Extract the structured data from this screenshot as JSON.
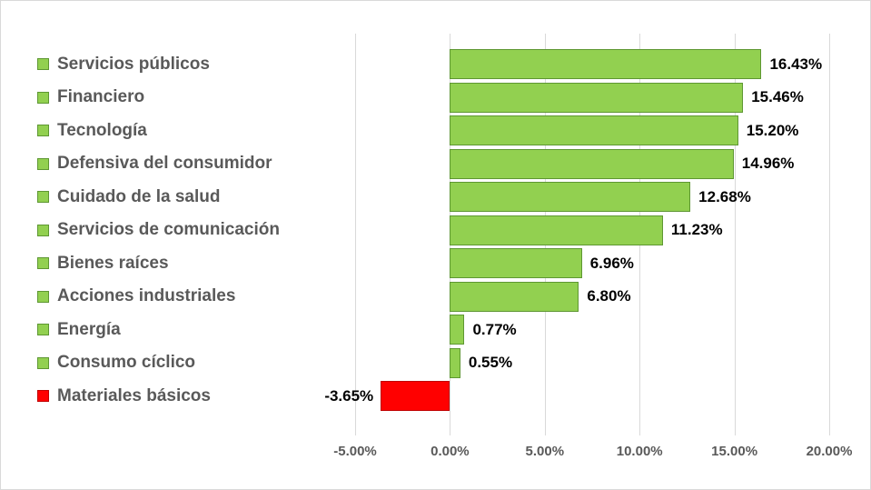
{
  "chart_data": {
    "type": "bar",
    "orientation": "horizontal",
    "title": "",
    "xlabel": "",
    "ylabel": "",
    "categories": [
      "Servicios públicos",
      "Financiero",
      "Tecnología",
      "Defensiva del consumidor",
      "Cuidado de la salud",
      "Servicios de comunicación",
      "Bienes raíces",
      "Acciones industriales",
      "Energía",
      "Consumo cíclico",
      "Materiales básicos"
    ],
    "values": [
      16.43,
      15.46,
      15.2,
      14.96,
      12.68,
      11.23,
      6.96,
      6.8,
      0.77,
      0.55,
      -3.65
    ],
    "value_labels": [
      "16.43%",
      "15.46%",
      "15.20%",
      "14.96%",
      "12.68%",
      "11.23%",
      "6.96%",
      "6.80%",
      "0.77%",
      "0.55%",
      "-3.65%"
    ],
    "x_ticks": [
      {
        "label": "-5.00%",
        "value": -5
      },
      {
        "label": "0.00%",
        "value": 0
      },
      {
        "label": "5.00%",
        "value": 5
      },
      {
        "label": "10.00%",
        "value": 10
      },
      {
        "label": "15.00%",
        "value": 15
      },
      {
        "label": "20.00%",
        "value": 20
      }
    ],
    "xlim": [
      -5,
      20
    ],
    "grid": true,
    "legend_position": "none",
    "colors": {
      "positive": "#92D050",
      "positive_border": "#5E9732",
      "negative": "#FF0000",
      "negative_border": "#C00000",
      "grid": "#D9D9D9",
      "tick_text": "#595959",
      "category_text": "#595959",
      "value_text": "#000000"
    }
  }
}
